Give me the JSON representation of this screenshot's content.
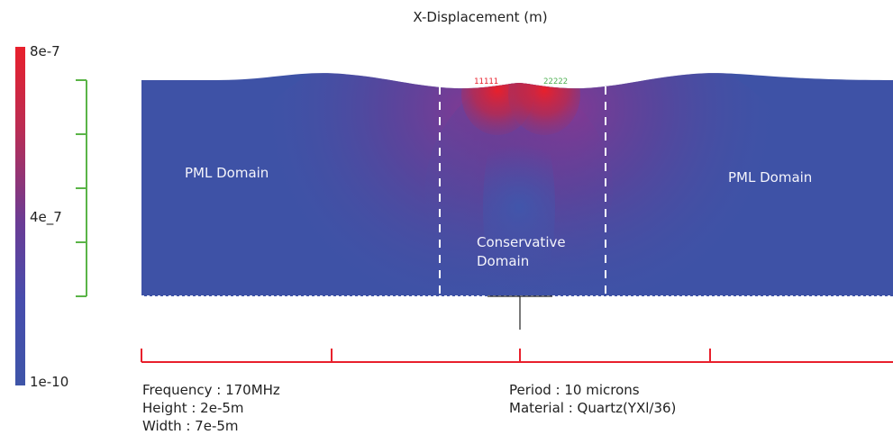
{
  "title": "X-Displacement (m)",
  "colorbar": {
    "max_label": "8e-7",
    "mid_label": "4e_7",
    "min_label": "1e-10",
    "colors": [
      "#e8202c",
      "#6a3c95",
      "#3e55a8"
    ]
  },
  "regions": {
    "pml_left": "PML Domain",
    "pml_right": "PML Domain",
    "conservative_line1": "Conservative",
    "conservative_line2": "Domain"
  },
  "probes": {
    "left_label": "11111",
    "left_color": "#e8202c",
    "right_label": "22222",
    "right_color": "#4caf50"
  },
  "info_left": {
    "frequency": "Frequency : 170MHz",
    "height": "Height : 2e-5m",
    "width": "Width : 7e-5m"
  },
  "info_right": {
    "period": "Period : 10 microns",
    "material": "Material : Quartz(YXl/36)"
  },
  "scale_colors": {
    "vertical_scale": "#5ab447",
    "horizontal_scale": "#e8202c",
    "boundary_lines": "#ffffff"
  }
}
